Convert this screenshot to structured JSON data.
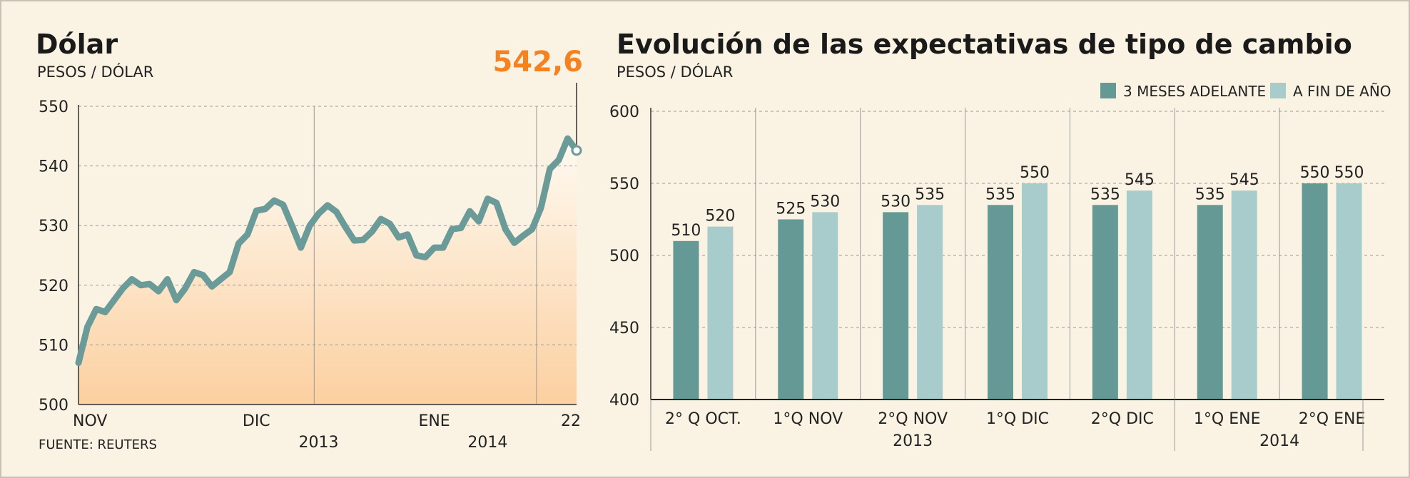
{
  "chart_data": [
    {
      "type": "line",
      "title": "Dólar",
      "subtitle": "PESOS / DÓLAR",
      "source": "FUENTE: REUTERS",
      "callout": "542,6",
      "ylim": [
        500,
        550
      ],
      "yticks": [
        "550",
        "540",
        "530",
        "520",
        "510",
        "500"
      ],
      "xlabels": [
        {
          "label": "NOV",
          "index": 0
        },
        {
          "label": "DIC",
          "index": 20
        },
        {
          "label": "ENE",
          "index": 40
        },
        {
          "label": "22",
          "index": 54
        }
      ],
      "year_labels": [
        {
          "label": "2013",
          "index": 27
        },
        {
          "label": "2014",
          "index": 46
        }
      ],
      "colors": {
        "line": "#6b9b98",
        "fill_top": "#fefaf2",
        "fill_bottom": "#fcd0a0",
        "callout": "#f58220"
      },
      "series": [
        {
          "values": [
            507,
            513,
            516,
            515.5,
            517.5,
            519.5,
            521,
            520,
            520.2,
            519,
            521,
            517.5,
            519.5,
            522.2,
            521.7,
            519.8,
            521,
            522.2,
            527,
            528.5,
            532.5,
            532.8,
            534.2,
            533.5,
            530,
            526.3,
            530,
            532,
            533.4,
            532.3,
            529.8,
            527.5,
            527.6,
            529,
            531.1,
            530.3,
            528,
            528.5,
            525,
            524.7,
            526.3,
            526.3,
            529.4,
            529.6,
            532.4,
            530.7,
            534.5,
            533.8,
            529.4,
            527.1,
            528.3,
            529.4,
            533,
            539.5,
            541,
            544.6,
            542.6
          ]
        }
      ]
    },
    {
      "type": "bar",
      "title": "Evolución de las expectativas de tipo de cambio",
      "subtitle": "PESOS / DÓLAR",
      "ylim": [
        400,
        600
      ],
      "yticks": [
        "600",
        "550",
        "500",
        "450",
        "400"
      ],
      "categories": [
        "2° Q OCT.",
        "1°Q NOV",
        "2°Q NOV",
        "1°Q DIC",
        "2°Q DIC",
        "1°Q ENE",
        "2°Q ENE"
      ],
      "year_labels": [
        "2013",
        "2014"
      ],
      "series": [
        {
          "name": "3 MESES ADELANTE",
          "color": "#659995",
          "values": [
            510,
            525,
            530,
            535,
            535,
            535,
            550
          ],
          "labels": [
            "510",
            "525",
            "530",
            "535",
            "535",
            "535",
            "550"
          ]
        },
        {
          "name": "A FIN DE AÑO",
          "color": "#a8cbcb",
          "values": [
            520,
            530,
            535,
            550,
            545,
            545,
            550
          ],
          "labels": [
            "520",
            "530",
            "535",
            "550",
            "545",
            "545",
            "550"
          ]
        }
      ]
    }
  ]
}
